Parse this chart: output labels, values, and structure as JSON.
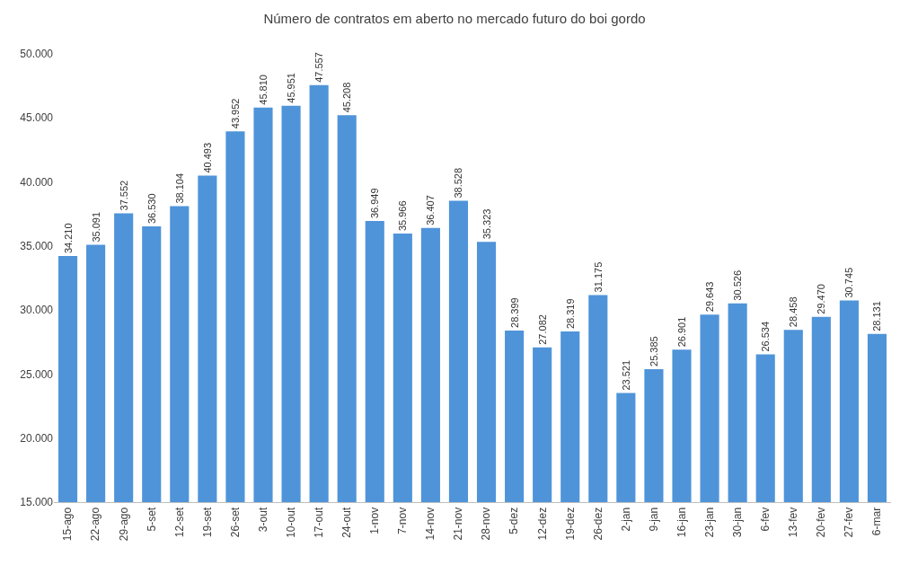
{
  "chart_data": {
    "type": "bar",
    "title": "Número de contratos em aberto no mercado futuro do boi gordo",
    "categories": [
      "15-ago",
      "22-ago",
      "29-ago",
      "5-set",
      "12-set",
      "19-set",
      "26-set",
      "3-out",
      "10-out",
      "17-out",
      "24-out",
      "1-nov",
      "7-nov",
      "14-nov",
      "21-nov",
      "28-nov",
      "5-dez",
      "12-dez",
      "19-dez",
      "26-dez",
      "2-jan",
      "9-jan",
      "16-jan",
      "23-jan",
      "30-jan",
      "6-fev",
      "13-fev",
      "20-fev",
      "27-fev",
      "6-mar"
    ],
    "values": [
      34210,
      35091,
      37552,
      36530,
      38104,
      40493,
      43952,
      45810,
      45951,
      47557,
      45208,
      36949,
      35966,
      36407,
      38528,
      35323,
      28399,
      27082,
      28319,
      31175,
      23521,
      25385,
      26901,
      29643,
      30526,
      26534,
      28458,
      29470,
      30745,
      28131
    ],
    "value_labels": [
      "34.210",
      "35.091",
      "37.552",
      "36.530",
      "38.104",
      "40.493",
      "43.952",
      "45.810",
      "45.951",
      "47.557",
      "45.208",
      "36.949",
      "35.966",
      "36.407",
      "38.528",
      "35.323",
      "28.399",
      "27.082",
      "28.319",
      "31.175",
      "23.521",
      "25.385",
      "26.901",
      "29.643",
      "30.526",
      "26.534",
      "28.458",
      "29.470",
      "30.745",
      "28.131"
    ],
    "color": "#4f94d9",
    "ylim": [
      15000,
      50000
    ],
    "yticks": [
      {
        "value": 15000,
        "label": "15.000"
      },
      {
        "value": 20000,
        "label": "20.000"
      },
      {
        "value": 25000,
        "label": "25.000"
      },
      {
        "value": 30000,
        "label": "30.000"
      },
      {
        "value": 35000,
        "label": "35.000"
      },
      {
        "value": 40000,
        "label": "40.000"
      },
      {
        "value": 45000,
        "label": "45.000"
      },
      {
        "value": 50000,
        "label": "50.000"
      }
    ],
    "grid": false,
    "legend": false
  }
}
